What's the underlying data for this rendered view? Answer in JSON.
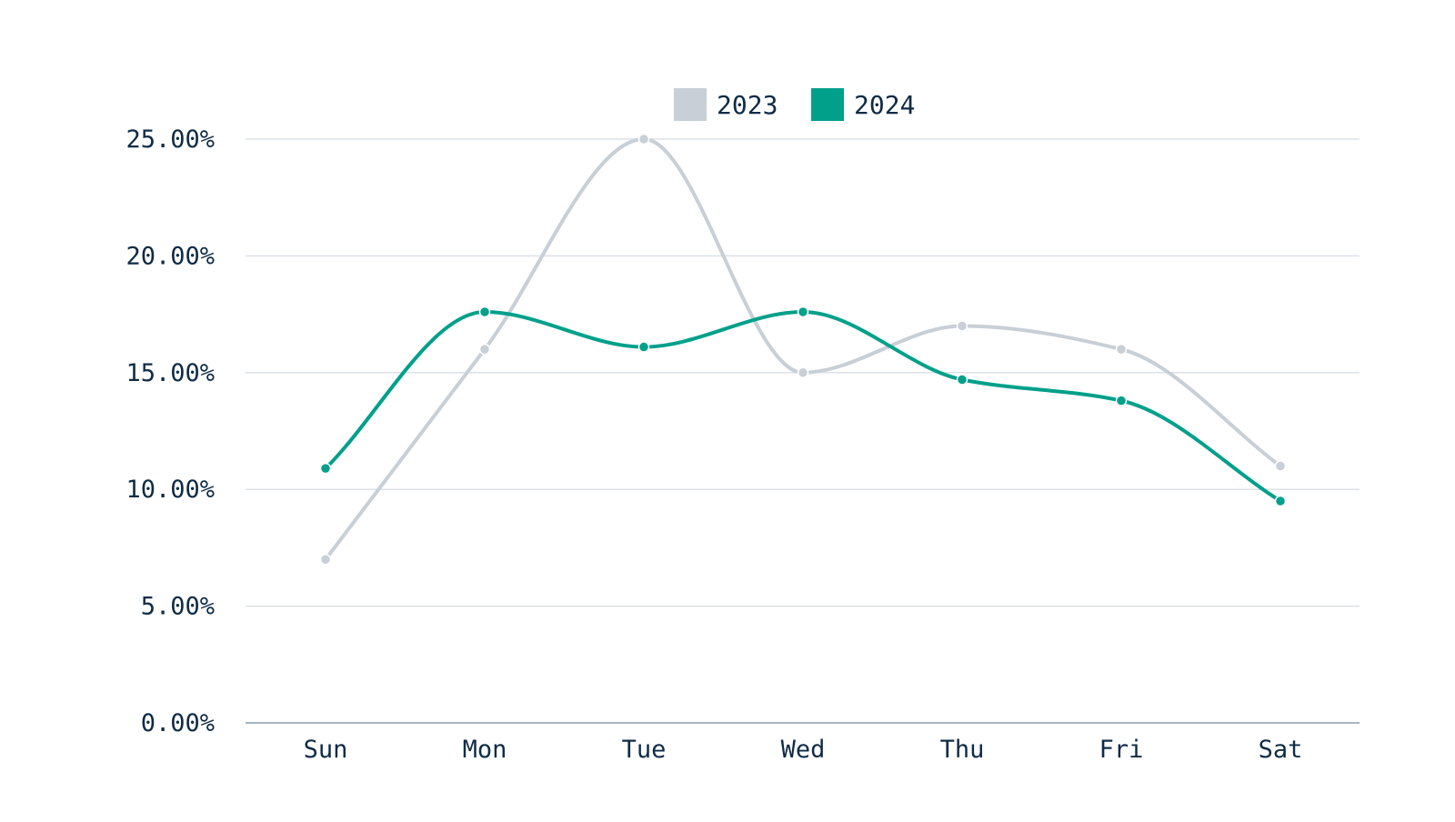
{
  "chart_data": {
    "type": "line",
    "categories": [
      "Sun",
      "Mon",
      "Tue",
      "Wed",
      "Thu",
      "Fri",
      "Sat"
    ],
    "series": [
      {
        "name": "2023",
        "color": "#c8cfd6",
        "values": [
          7.0,
          16.0,
          25.0,
          15.0,
          17.0,
          16.0,
          11.0
        ]
      },
      {
        "name": "2024",
        "color": "#00a08a",
        "values": [
          10.9,
          17.6,
          16.1,
          17.6,
          14.7,
          13.8,
          9.5
        ]
      }
    ],
    "ylim": [
      0,
      25
    ],
    "yticks": [
      "0.00%",
      "5.00%",
      "10.00%",
      "15.00%",
      "20.00%",
      "25.00%"
    ],
    "ytick_values": [
      0,
      5,
      10,
      15,
      20,
      25
    ],
    "grid": true,
    "legend_position": "top-center",
    "smooth": true
  }
}
